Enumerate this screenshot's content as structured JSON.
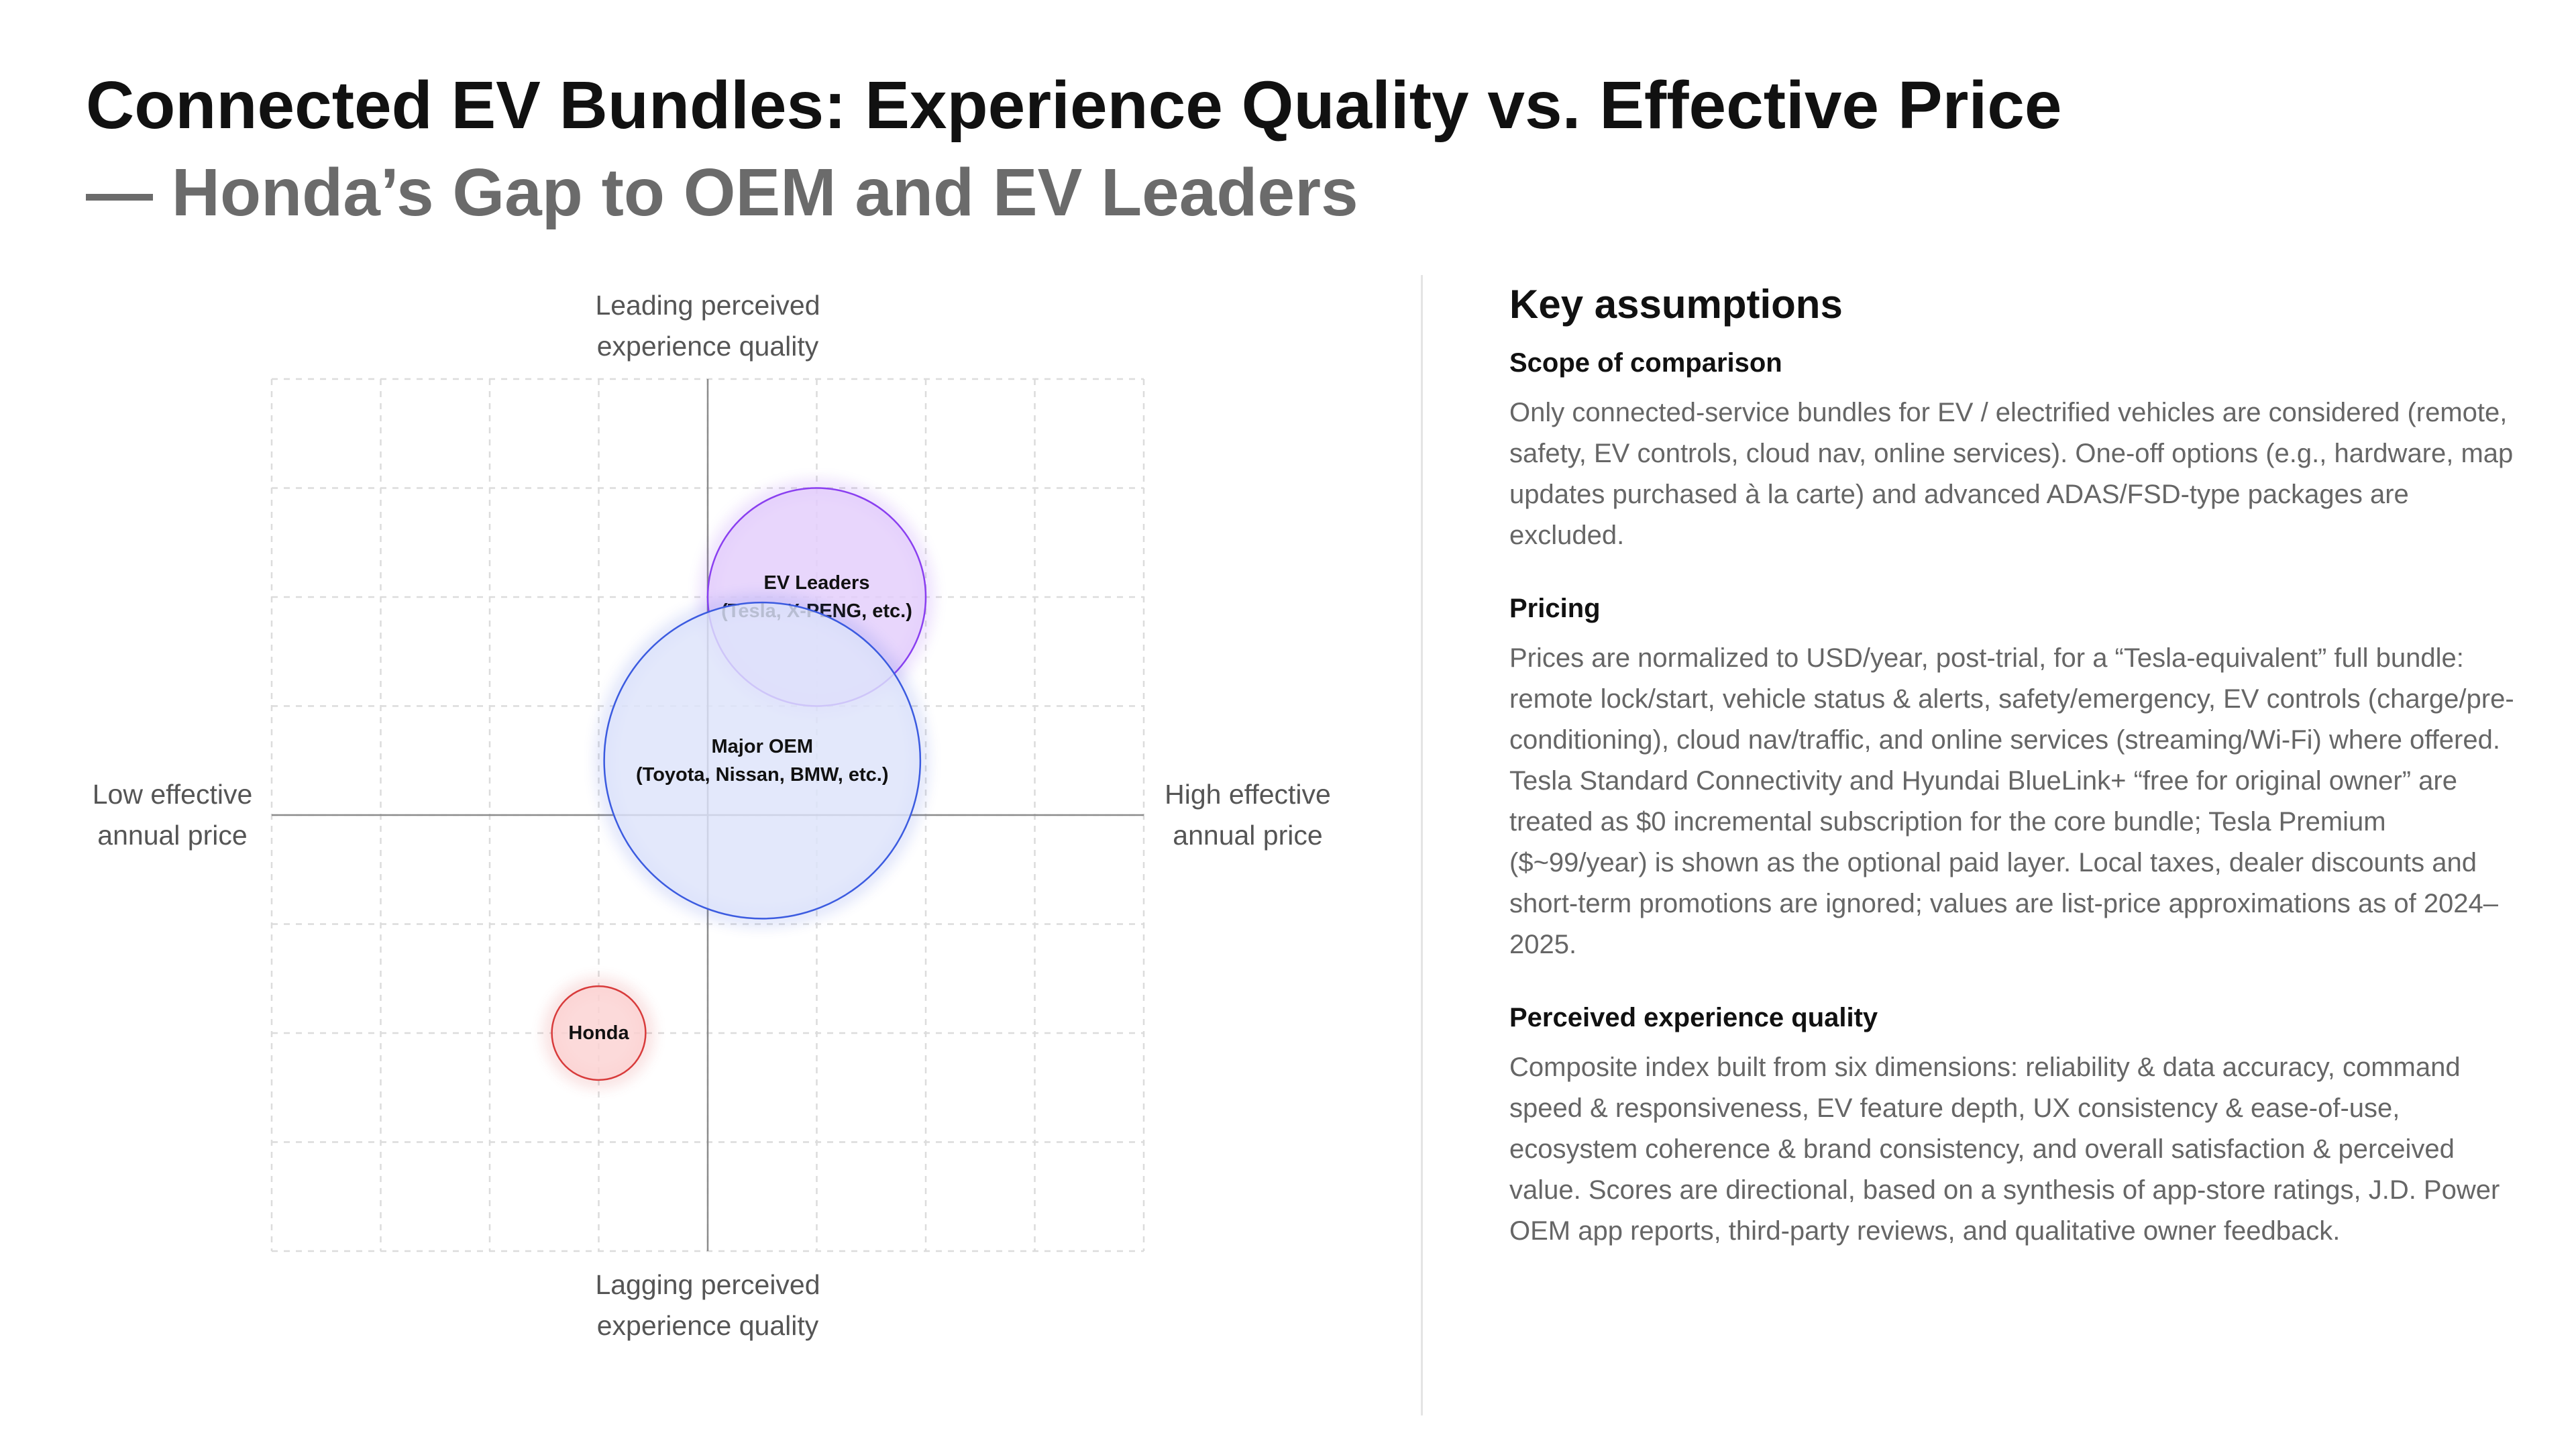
{
  "header": {
    "title": "Connected EV Bundles: Experience Quality vs. Effective Price",
    "subtitle": "— Honda’s Gap to OEM and EV Leaders"
  },
  "chart_data": {
    "type": "bubble",
    "quadrant_labels": {
      "top": [
        "Leading perceived",
        "experience quality"
      ],
      "bottom": [
        "Lagging perceived",
        "experience quality"
      ],
      "left": [
        "Low effective",
        "annual price"
      ],
      "right": [
        "High effective",
        "annual price"
      ]
    },
    "xlim": [
      -4,
      4
    ],
    "ylim": [
      -4,
      4
    ],
    "grid": true,
    "series": [
      {
        "label_lines": [
          "EV Leaders",
          "(Tesla, X-PENG, etc.)"
        ],
        "x": 1.0,
        "y": 2.0,
        "size": 1.0,
        "fill": "#e3cdfb",
        "stroke": "#8a3ff0"
      },
      {
        "label_lines": [
          "Major OEM",
          "(Toyota, Nissan, BMW, etc.)"
        ],
        "x": 0.5,
        "y": 0.5,
        "size": 1.45,
        "fill": "#dde3fa",
        "stroke": "#3b5be0"
      },
      {
        "label_lines": [
          "Honda"
        ],
        "x": -1.0,
        "y": -2.0,
        "size": 0.43,
        "fill": "#fbd2d2",
        "stroke": "#d83b3b"
      }
    ]
  },
  "assumptions": {
    "heading": "Key assumptions",
    "sections": [
      {
        "heading": "Scope of comparison",
        "body": "Only connected-service bundles for EV / electrified vehicles are considered (remote, safety, EV controls, cloud nav, online services). One-off options (e.g., hardware, map updates purchased à la carte) and advanced ADAS/FSD-type packages are excluded."
      },
      {
        "heading": "Pricing",
        "body": "Prices are normalized to USD/year, post-trial, for a “Tesla-equivalent” full bundle: remote lock/start, vehicle status & alerts, safety/emergency, EV controls (charge/pre-conditioning), cloud nav/traffic, and online services (streaming/Wi-Fi) where offered. Tesla Standard Connectivity and Hyundai BlueLink+ “free for original owner” are treated as $0 incremental subscription for the core bundle; Tesla Premium ($~99/year) is shown as the optional paid layer. Local taxes, dealer discounts and short-term promotions are ignored; values are list-price approximations as of 2024–2025."
      },
      {
        "heading": "Perceived experience quality",
        "body": "Composite index built from six dimensions: reliability & data accuracy, command speed & responsiveness, EV feature depth, UX consistency & ease-of-use, ecosystem coherence & brand consistency, and overall satisfaction & perceived value. Scores are directional, based on a synthesis of app-store ratings, J.D. Power OEM app reports, third-party reviews, and qualitative owner feedback."
      }
    ]
  }
}
